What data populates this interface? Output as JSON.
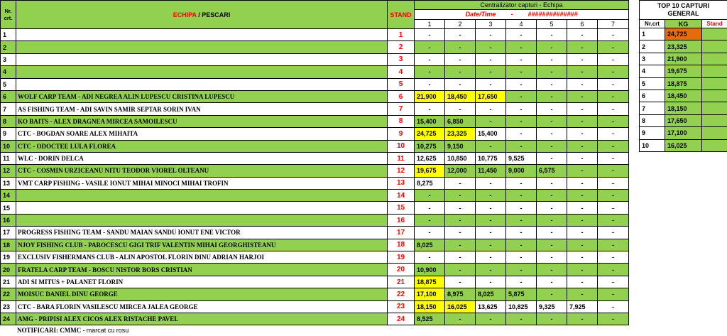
{
  "header": {
    "nr_label": "Nr. crt.",
    "echipa_label": "ECHIPA",
    "separator": " / ",
    "pescari_label": "PESCARI",
    "stand_label": "STAND",
    "centralizator_title": "Centralizator capturi - Echipa",
    "datetime_label": "Date/Time",
    "datetime_dash": "-",
    "datetime_value": "##############",
    "columns": [
      "1",
      "2",
      "3",
      "4",
      "5",
      "6",
      "7"
    ]
  },
  "rows": [
    {
      "nr": "1",
      "team": "",
      "stand": "1",
      "values": [
        "-",
        "-",
        "-",
        "-",
        "-",
        "-",
        "-"
      ],
      "highlight": [],
      "bg": "white"
    },
    {
      "nr": "2",
      "team": "",
      "stand": "2",
      "values": [
        "-",
        "-",
        "-",
        "-",
        "-",
        "-",
        "-"
      ],
      "highlight": [],
      "bg": "green"
    },
    {
      "nr": "3",
      "team": "",
      "stand": "3",
      "values": [
        "-",
        "-",
        "-",
        "-",
        "-",
        "-",
        "-"
      ],
      "highlight": [],
      "bg": "white"
    },
    {
      "nr": "4",
      "team": "",
      "stand": "4",
      "values": [
        "-",
        "-",
        "-",
        "-",
        "-",
        "-",
        "-"
      ],
      "highlight": [],
      "bg": "green"
    },
    {
      "nr": "5",
      "team": "",
      "stand": "5",
      "values": [
        "-",
        "-",
        "-",
        "-",
        "-",
        "-",
        "-"
      ],
      "highlight": [],
      "bg": "white"
    },
    {
      "nr": "6",
      "team": "WOLF CARP TEAM - ADI NEGREA ALIN LUPESCU CRISTINA LUPESCU",
      "stand": "6",
      "values": [
        "21,900",
        "18,450",
        "17,650",
        "-",
        "-",
        "-",
        "-"
      ],
      "highlight": [
        0,
        1,
        2
      ],
      "bg": "green"
    },
    {
      "nr": "7",
      "team": "AS FISHING TEAM - ADI SAVIN SAMIR SEPTAR SORIN IVAN",
      "stand": "7",
      "values": [
        "-",
        "-",
        "-",
        "-",
        "-",
        "-",
        "-"
      ],
      "highlight": [],
      "bg": "white"
    },
    {
      "nr": "8",
      "team": "KO BAITS - ALEX DRAGNEA MIRCEA SAMOILESCU",
      "stand": "8",
      "values": [
        "15,400",
        "6,850",
        "-",
        "-",
        "-",
        "-",
        "-"
      ],
      "highlight": [],
      "bg": "green"
    },
    {
      "nr": "9",
      "team": "CTC - BOGDAN SOARE ALEX MIHAITA",
      "stand": "9",
      "values": [
        "24,725",
        "23,325",
        "15,400",
        "-",
        "-",
        "-",
        "-"
      ],
      "highlight": [
        0,
        1
      ],
      "bg": "white"
    },
    {
      "nr": "10",
      "team": "CTC - ODOCTEE LULA FLOREA",
      "stand": "10",
      "values": [
        "10,275",
        "9,150",
        "-",
        "-",
        "-",
        "-",
        "-"
      ],
      "highlight": [],
      "bg": "green"
    },
    {
      "nr": "11",
      "team": "WLC - DORIN DELCA",
      "stand": "11",
      "values": [
        "12,625",
        "10,850",
        "10,775",
        "9,525",
        "-",
        "-",
        "-"
      ],
      "highlight": [],
      "bg": "white"
    },
    {
      "nr": "12",
      "team": "CTC - COSMIN URZICEANU NITU TEODOR VIOREL OLTEANU",
      "stand": "12",
      "values": [
        "19,675",
        "12,000",
        "11,450",
        "9,000",
        "6,575",
        "-",
        "-"
      ],
      "highlight": [
        0
      ],
      "bg": "green"
    },
    {
      "nr": "13",
      "team": "VMT CARP FISHING - VASILE IONUT MIHAI MINOCI MIHAI TROFIN",
      "stand": "13",
      "values": [
        "8,275",
        "-",
        "-",
        "-",
        "-",
        "-",
        "-"
      ],
      "highlight": [],
      "bg": "white"
    },
    {
      "nr": "14",
      "team": "",
      "stand": "14",
      "values": [
        "-",
        "-",
        "-",
        "-",
        "-",
        "-",
        "-"
      ],
      "highlight": [],
      "bg": "green"
    },
    {
      "nr": "15",
      "team": "",
      "stand": "15",
      "values": [
        "-",
        "-",
        "-",
        "-",
        "-",
        "-",
        "-"
      ],
      "highlight": [],
      "bg": "white"
    },
    {
      "nr": "16",
      "team": "",
      "stand": "16",
      "values": [
        "-",
        "-",
        "-",
        "-",
        "-",
        "-",
        "-"
      ],
      "highlight": [],
      "bg": "green"
    },
    {
      "nr": "17",
      "team": "PROGRESS FISHING TEAM - SANDU MAIAN SANDU IONUT ENE VICTOR",
      "stand": "17",
      "values": [
        "-",
        "-",
        "-",
        "-",
        "-",
        "-",
        "-"
      ],
      "highlight": [],
      "bg": "white"
    },
    {
      "nr": "18",
      "team": "NJOY FISHING CLUB - PAROCESCU GIGI TRIF VALENTIN MIHAI GEORGHISTEANU",
      "stand": "18",
      "values": [
        "8,025",
        "-",
        "-",
        "-",
        "-",
        "-",
        "-"
      ],
      "highlight": [],
      "bg": "green"
    },
    {
      "nr": "19",
      "team": "EXCLUSIV FISHERMANS CLUB - ALIN APOSTOL FLORIN DINU ADRIAN HARJOI",
      "stand": "19",
      "values": [
        "-",
        "-",
        "-",
        "-",
        "-",
        "-",
        "-"
      ],
      "highlight": [],
      "bg": "white"
    },
    {
      "nr": "20",
      "team": "FRATELA CARP TEAM - BOSCU NISTOR BORS CRISTIAN",
      "stand": "20",
      "values": [
        "10,900",
        "-",
        "-",
        "-",
        "-",
        "-",
        "-"
      ],
      "highlight": [],
      "bg": "green"
    },
    {
      "nr": "21",
      "team": "ADI SI MITUS + PALANET FLORIN",
      "stand": "21",
      "values": [
        "18,875",
        "-",
        "-",
        "-",
        "-",
        "-",
        "-"
      ],
      "highlight": [
        0
      ],
      "bg": "white"
    },
    {
      "nr": "22",
      "team": "MOISUC DANIEL DINU GEORGE",
      "stand": "22",
      "values": [
        "17,100",
        "8,975",
        "8,025",
        "5,875",
        "-",
        "-",
        "-"
      ],
      "highlight": [
        0
      ],
      "bg": "green"
    },
    {
      "nr": "23",
      "team": "CTC - BARA FLORIN VASILESCU MIRCEA JALEA GEORGE",
      "stand": "23",
      "values": [
        "18,150",
        "16,025",
        "13,625",
        "10,825",
        "9,325",
        "7,925",
        "-"
      ],
      "highlight": [
        0,
        1
      ],
      "bg": "white"
    },
    {
      "nr": "24",
      "team": "AMG - PRIPISI ALEX CICOS ALEX RISTACHE PAVEL",
      "stand": "24",
      "values": [
        "8,525",
        "-",
        "-",
        "-",
        "-",
        "-",
        "-"
      ],
      "highlight": [],
      "bg": "green"
    }
  ],
  "notificari": {
    "label": "NOTIFICARI: CMMC -",
    "text": "marcat cu rosu"
  },
  "top10": {
    "title": "TOP 10 CAPTURI GENERAL",
    "nr_label": "Nr.crt",
    "kg_label": "KG",
    "stand_label": "Stand",
    "rows": [
      {
        "nr": "1",
        "kg": "24,725",
        "stand": ""
      },
      {
        "nr": "2",
        "kg": "23,325",
        "stand": ""
      },
      {
        "nr": "3",
        "kg": "21,900",
        "stand": ""
      },
      {
        "nr": "4",
        "kg": "19,675",
        "stand": ""
      },
      {
        "nr": "5",
        "kg": "18,875",
        "stand": ""
      },
      {
        "nr": "6",
        "kg": "18,450",
        "stand": ""
      },
      {
        "nr": "7",
        "kg": "18,150",
        "stand": ""
      },
      {
        "nr": "8",
        "kg": "17,650",
        "stand": ""
      },
      {
        "nr": "9",
        "kg": "17,100",
        "stand": ""
      },
      {
        "nr": "10",
        "kg": "16,025",
        "stand": ""
      }
    ]
  },
  "colors": {
    "green": "#92d050",
    "yellow": "#ffff00",
    "orange": "#e46c0a",
    "stand_red": "#ff0000"
  }
}
